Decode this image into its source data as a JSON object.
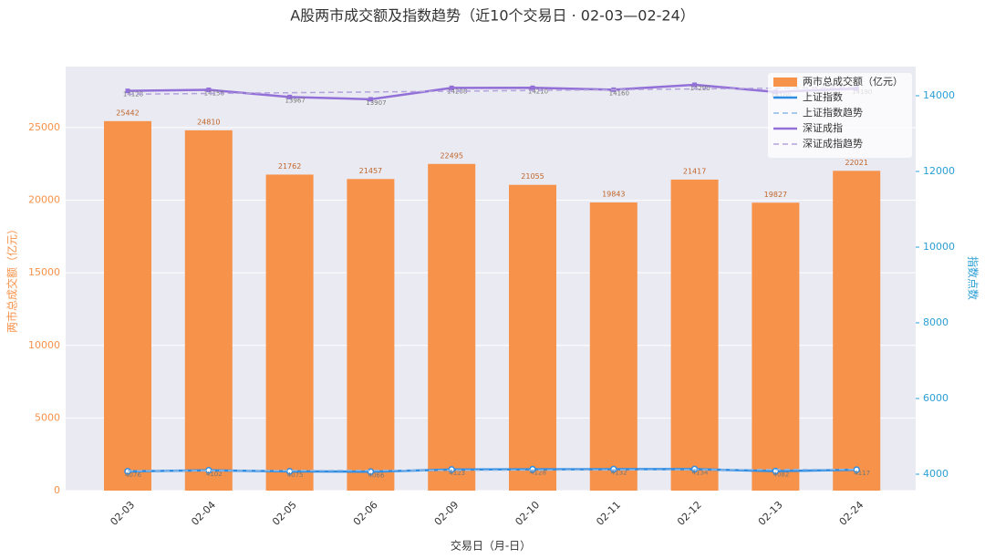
{
  "chart_data": {
    "type": "combo",
    "title": "A股两市成交额及指数趋势（近10个交易日 · 02-03—02-24）",
    "x_label": "交易日（月-日）",
    "y_label": "两市总成交额（亿元）",
    "y2_label": "指数点数",
    "categories": [
      "02-03",
      "02-04",
      "02-05",
      "02-06",
      "02-09",
      "02-10",
      "02-11",
      "02-12",
      "02-13",
      "02-24"
    ],
    "ylim": [
      0,
      29200
    ],
    "yticks": [
      0,
      5000,
      10000,
      15000,
      20000,
      25000
    ],
    "y2lim": [
      3566,
      14771
    ],
    "y2ticks": [
      4000,
      6000,
      8000,
      10000,
      12000,
      14000
    ],
    "grid": true,
    "legend": "upper right",
    "series": [
      {
        "name": "两市总成交额（亿元）",
        "type": "bar",
        "color": "#f7924a",
        "data_labels": true,
        "values": [
          25442,
          24810,
          21762,
          21457,
          22495,
          21055,
          19843,
          21417,
          19827,
          22021
        ]
      },
      {
        "name": "上证指数",
        "type": "line",
        "axis": "y2",
        "color": "#2f8de4",
        "marker": "circle",
        "data_labels": true,
        "values": [
          4076,
          4102,
          4075,
          4066,
          4123,
          4128,
          4132,
          4134,
          4082,
          4117
        ]
      },
      {
        "name": "上证指数趋势",
        "type": "line",
        "axis": "y2",
        "color": "#8cb9e8",
        "dash": true,
        "values": [
          4086,
          4091,
          4095,
          4100,
          4104,
          4108,
          4113,
          4117,
          4121,
          4126
        ]
      },
      {
        "name": "深证成指",
        "type": "line",
        "axis": "y2",
        "color": "#9270d8",
        "marker": "square",
        "data_labels": true,
        "values": [
          14128,
          14156,
          13967,
          13907,
          14208,
          14210,
          14160,
          14290,
          14100,
          14190
        ]
      },
      {
        "name": "深证成指趋势",
        "type": "line",
        "axis": "y2",
        "color": "#b3a2dc",
        "dash": true,
        "values": [
          14040,
          14060,
          14080,
          14100,
          14120,
          14140,
          14160,
          14180,
          14200,
          14220
        ]
      }
    ]
  }
}
